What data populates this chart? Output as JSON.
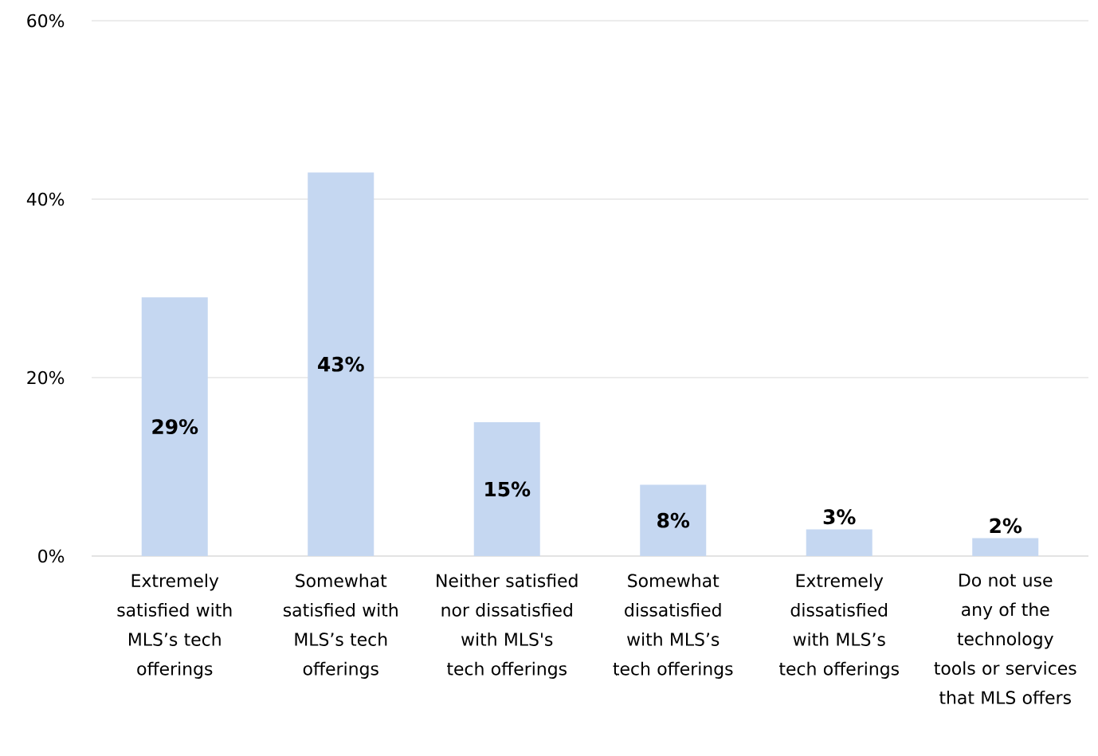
{
  "chart_data": {
    "type": "bar",
    "categories": [
      "Extremely satisfied with MLS’s tech offerings",
      "Somewhat satisfied with MLS’s tech offerings",
      "Neither satisfied nor dissatisfied with MLS's tech offerings",
      "Somewhat dissatisfied with MLS’s tech offerings",
      "Extremely dissatisfied with MLS’s tech offerings",
      "Do not use any of the technology tools or services that MLS offers"
    ],
    "values": [
      29,
      43,
      15,
      8,
      3,
      2
    ],
    "value_labels": [
      "29%",
      "43%",
      "15%",
      "8%",
      "3%",
      "2%"
    ],
    "color": "#c5d7f1",
    "ylim": [
      0,
      60
    ],
    "yticks": [
      {
        "value": 0,
        "label": "0%"
      },
      {
        "value": 20,
        "label": "20%"
      },
      {
        "value": 40,
        "label": "40%"
      },
      {
        "value": 60,
        "label": "60%"
      }
    ],
    "grid": "y"
  }
}
